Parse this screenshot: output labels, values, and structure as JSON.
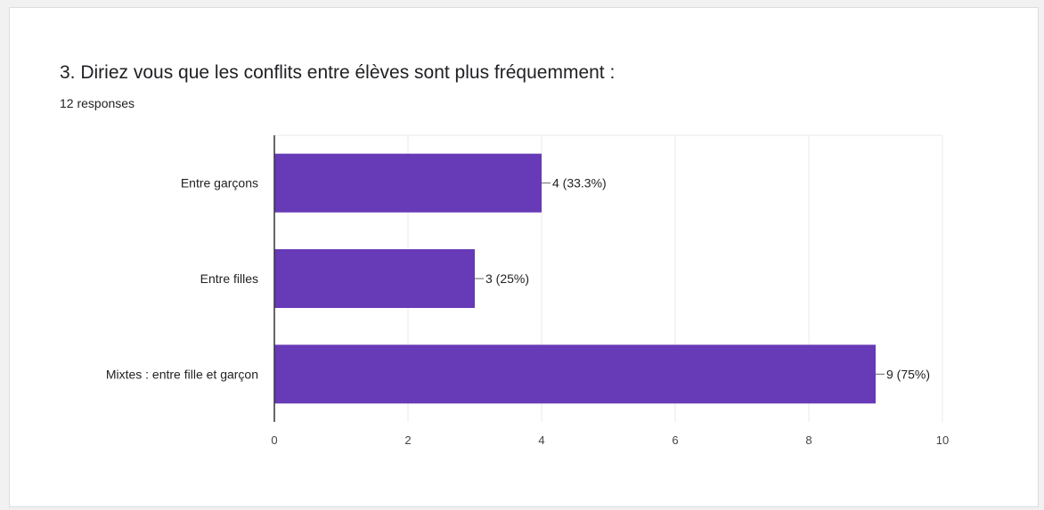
{
  "question": {
    "title": "3. Diriez vous que les conflits entre élèves sont plus fréquemment :",
    "response_count": "12 responses"
  },
  "colors": {
    "bar": "#673ab7",
    "grid": "#e8e8e8",
    "axis": "#333333",
    "text": "#222222",
    "tick_text": "#444444"
  },
  "chart_data": {
    "type": "bar",
    "orientation": "horizontal",
    "categories": [
      "Entre garçons",
      "Entre filles",
      "Mixtes : entre fille et garçon"
    ],
    "values": [
      4,
      3,
      9
    ],
    "data_labels": [
      "4 (33.3%)",
      "3 (25%)",
      "9 (75%)"
    ],
    "xlim": [
      0,
      10
    ],
    "xticks": [
      0,
      2,
      4,
      6,
      8,
      10
    ],
    "xtick_labels": [
      "0",
      "2",
      "4",
      "6",
      "8",
      "10"
    ],
    "grid": true,
    "legend": "none"
  }
}
